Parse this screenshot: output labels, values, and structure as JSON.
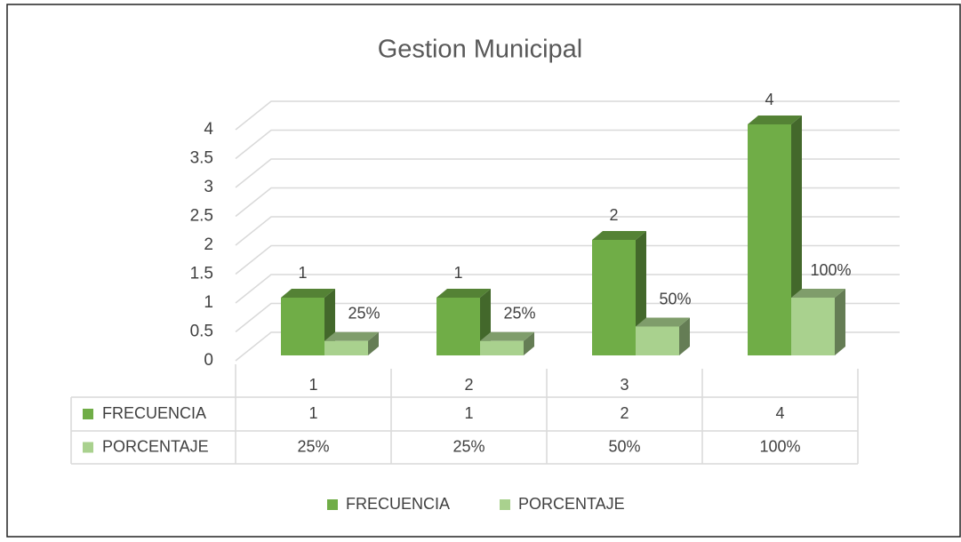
{
  "chart_data": {
    "type": "bar3d",
    "title": "Gestion Municipal",
    "categories": [
      "1",
      "2",
      "3",
      null
    ],
    "series": [
      {
        "name": "FRECUENCIA",
        "color": "#70ad47",
        "values": [
          1,
          1,
          2,
          4
        ]
      },
      {
        "name": "PORCENTAJE",
        "color": "#a9d18e",
        "values": [
          0.25,
          0.25,
          0.5,
          1
        ],
        "value_labels": [
          "25%",
          "25%",
          "50%",
          "100%"
        ]
      }
    ],
    "ylim": [
      0,
      4
    ],
    "yticks": [
      0,
      0.5,
      1,
      1.5,
      2,
      2.5,
      3,
      3.5,
      4
    ],
    "grid": true,
    "data_table": true,
    "legend": "bottom"
  }
}
